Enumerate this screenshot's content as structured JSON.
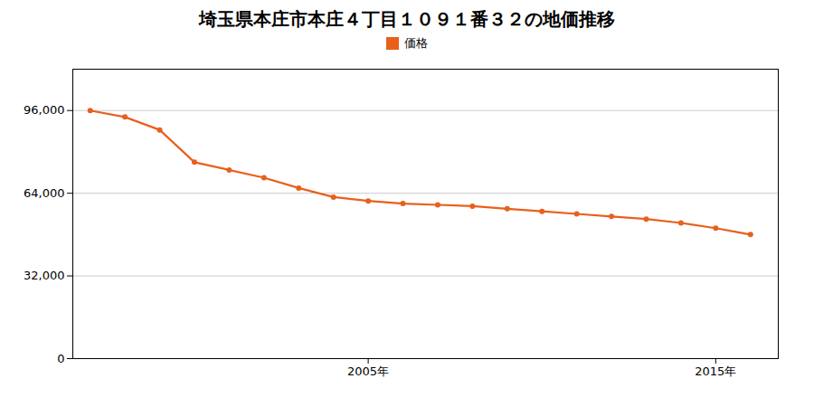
{
  "chart_data": {
    "type": "line",
    "title": "埼玉県本庄市本庄４丁目１０９１番３２の地価推移",
    "x": [
      1997,
      1998,
      1999,
      2000,
      2001,
      2002,
      2003,
      2004,
      2005,
      2006,
      2007,
      2008,
      2009,
      2010,
      2011,
      2012,
      2013,
      2014,
      2015,
      2016
    ],
    "series": [
      {
        "name": "価格",
        "color": "#e8601c",
        "marker": "circle",
        "values": [
          96000,
          93500,
          88500,
          76000,
          73000,
          70000,
          66000,
          62500,
          61000,
          60000,
          59500,
          59000,
          58000,
          57000,
          56000,
          55000,
          54000,
          52500,
          50500,
          48000
        ]
      }
    ],
    "xlim": [
      1996.5,
      2016.8
    ],
    "xticks": [
      {
        "value": 2005,
        "label": "2005年"
      },
      {
        "value": 2015,
        "label": "2015年"
      }
    ],
    "ylim": [
      0,
      112000
    ],
    "yticks": [
      0,
      {
        "value": 32000,
        "label": "32,000"
      },
      {
        "value": 64000,
        "label": "64,000"
      },
      {
        "value": 96000,
        "label": "96,000"
      }
    ],
    "grid": true,
    "legend": "top"
  }
}
